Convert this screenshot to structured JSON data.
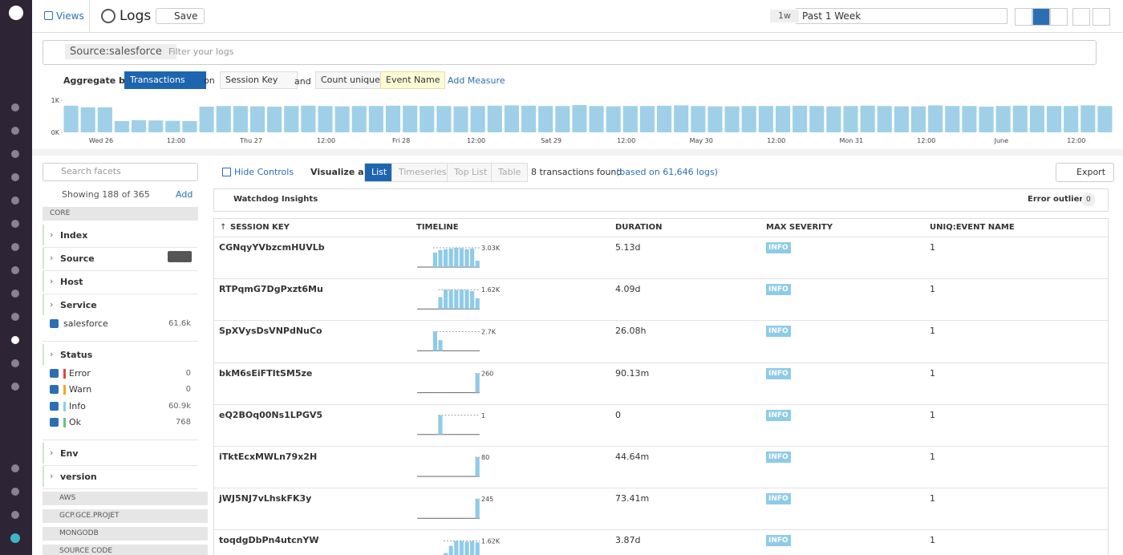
{
  "nav": {
    "views": "Views",
    "page_title": "Logs",
    "save": "Save",
    "time_short": "1w",
    "time_range": "Past 1 Week"
  },
  "search": {
    "query_tag": "Source:salesforce",
    "placeholder": "Filter your logs"
  },
  "aggregate": {
    "label": "Aggregate by",
    "group": "Transactions",
    "on": "on",
    "key": "Session Key",
    "and": "and",
    "measure_fn": "Count unique",
    "measure_field": "Event Name",
    "add_measure": "Add Measure"
  },
  "chart_data": {
    "type": "bar",
    "color": "#9fd0e8",
    "ylim": [
      0,
      1000
    ],
    "yticks": [
      {
        "value": 0,
        "label": "0K"
      },
      {
        "value": 1000,
        "label": "1K"
      }
    ],
    "x_labels": [
      "Wed 26",
      "12:00",
      "Thu 27",
      "12:00",
      "Fri 28",
      "12:00",
      "Sat 29",
      "12:00",
      "May 30",
      "12:00",
      "Mon 31",
      "12:00",
      "June",
      "12:00"
    ],
    "values": [
      830,
      780,
      780,
      350,
      380,
      370,
      360,
      350,
      800,
      820,
      820,
      810,
      800,
      820,
      830,
      820,
      810,
      820,
      820,
      830,
      830,
      820,
      820,
      810,
      820,
      830,
      840,
      830,
      820,
      820,
      850,
      820,
      810,
      820,
      820,
      830,
      840,
      820,
      810,
      810,
      820,
      820,
      820,
      830,
      820,
      810,
      820,
      830,
      820,
      810,
      810,
      840,
      820,
      820,
      800,
      820,
      830,
      830,
      820,
      820,
      840,
      820
    ]
  },
  "facets": {
    "search_placeholder": "Search facets",
    "showing": "Showing 188 of 365",
    "add": "Add",
    "top_group": "CORE",
    "items": [
      {
        "name": "Index"
      },
      {
        "name": "Source"
      },
      {
        "name": "Host"
      },
      {
        "name": "Service",
        "values": [
          {
            "label": "salesforce",
            "count": "61.6k",
            "color": "#2b6fb3"
          }
        ]
      },
      {
        "name": "Status",
        "values": [
          {
            "label": "Error",
            "count": "0",
            "color": "#e2453c"
          },
          {
            "label": "Warn",
            "count": "0",
            "color": "#f5a623"
          },
          {
            "label": "Info",
            "count": "60.9k",
            "color": "#8fcbe8"
          },
          {
            "label": "Ok",
            "count": "768",
            "color": "#6cc083"
          }
        ]
      },
      {
        "name": "Env"
      },
      {
        "name": "version"
      }
    ],
    "groups": [
      "AWS",
      "GCP.GCE.PROJET",
      "MONGODB",
      "SOURCE CODE"
    ]
  },
  "controls": {
    "hide_controls": "Hide Controls",
    "visualize_as": "Visualize as",
    "views": [
      "List",
      "Timeseries",
      "Top List",
      "Table"
    ],
    "active_view": 0,
    "found": "8 transactions found",
    "based_on": "(based on 61,646 logs)",
    "export": "Export"
  },
  "insights": {
    "title": "Watchdog Insights",
    "outliers_label": "Error outliers",
    "outliers_count": "0"
  },
  "table": {
    "columns": [
      "SESSION KEY",
      "TIMELINE",
      "DURATION",
      "MAX SEVERITY",
      "UNIQ:EVENT NAME"
    ],
    "rows": [
      {
        "key": "CGNqyYVbzcmHUVLb",
        "timeline": {
          "peak": {
            "value": 3030,
            "label": "3.03K"
          },
          "values": [
            0,
            0,
            0,
            2300,
            2700,
            2800,
            2900,
            3030,
            2950,
            2800,
            2900,
            1000
          ]
        },
        "duration": "5.13d",
        "severity": "INFO",
        "uniq": "1"
      },
      {
        "key": "RTPqmG7DgPxzt6Mu",
        "timeline": {
          "peak": {
            "value": 1620,
            "label": "1.62K"
          },
          "values": [
            0,
            0,
            0,
            0,
            1000,
            1620,
            1600,
            1580,
            1610,
            1590,
            1500,
            900
          ]
        },
        "duration": "4.09d",
        "severity": "INFO",
        "uniq": "1"
      },
      {
        "key": "SpXVysDsVNPdNuCo",
        "timeline": {
          "peak": {
            "value": 2700,
            "label": "2.7K"
          },
          "values": [
            0,
            0,
            0,
            2700,
            1500,
            0,
            0,
            0,
            0,
            0,
            0,
            0
          ]
        },
        "duration": "26.08h",
        "severity": "INFO",
        "uniq": "1"
      },
      {
        "key": "bkM6sEiFTItSM5ze",
        "timeline": {
          "peak": 260,
          "values": [
            0,
            0,
            0,
            0,
            0,
            0,
            0,
            0,
            0,
            0,
            0,
            260
          ]
        },
        "duration": "90.13m",
        "severity": "INFO",
        "uniq": "1"
      },
      {
        "key": "eQ2BOq00Ns1LPGV5",
        "timeline": {
          "peak": 1,
          "values": [
            0,
            0,
            0,
            0,
            1,
            0,
            0,
            0,
            0,
            0,
            0,
            0
          ]
        },
        "duration": "0",
        "severity": "INFO",
        "uniq": "1"
      },
      {
        "key": "iTktEcxMWLn79x2H",
        "timeline": {
          "peak": 80,
          "values": [
            0,
            0,
            0,
            0,
            0,
            0,
            0,
            0,
            0,
            0,
            0,
            80
          ]
        },
        "duration": "44.64m",
        "severity": "INFO",
        "uniq": "1"
      },
      {
        "key": "jWJ5NJ7vLhskFK3y",
        "timeline": {
          "peak": 245,
          "values": [
            0,
            0,
            0,
            0,
            0,
            0,
            0,
            0,
            0,
            0,
            0,
            245
          ]
        },
        "duration": "73.41m",
        "severity": "INFO",
        "uniq": "1"
      },
      {
        "key": "toqdgDbPn4utcnYW",
        "timeline": {
          "peak": {
            "value": 1620,
            "label": "1.62K"
          },
          "values": [
            0,
            0,
            0,
            0,
            0,
            600,
            1200,
            1620,
            1600,
            1550,
            1580,
            1500
          ]
        },
        "duration": "3.87d",
        "severity": "INFO",
        "uniq": "1"
      }
    ]
  }
}
